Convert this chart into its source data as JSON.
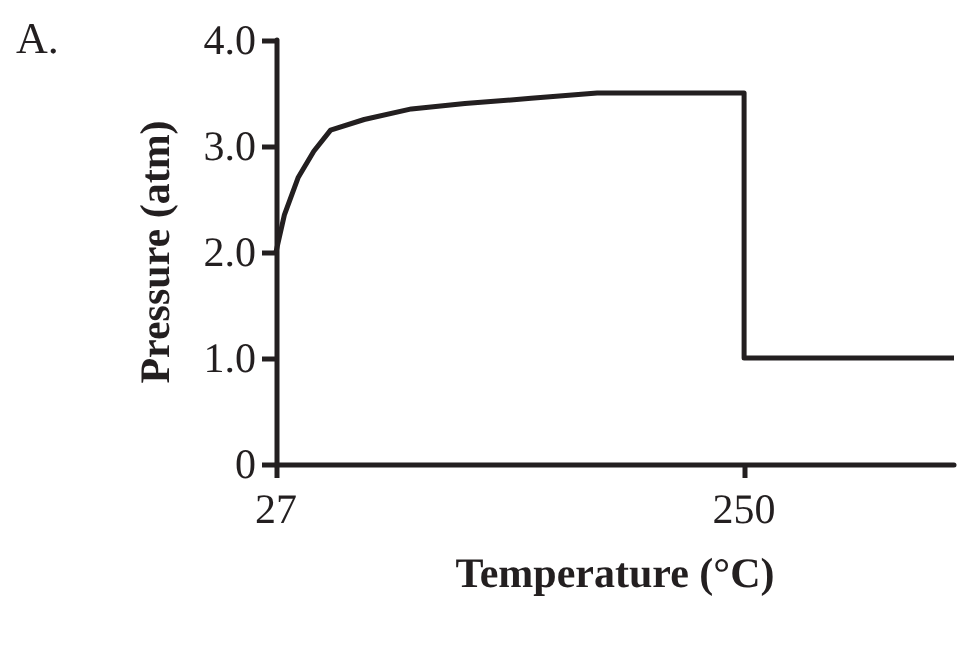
{
  "chart_data": {
    "type": "line",
    "xlabel": "Temperature (°C)",
    "ylabel": "Pressure (atm)",
    "annotations": [
      "A."
    ],
    "x": [
      27,
      31,
      37.5,
      45,
      53,
      69,
      91.5,
      117,
      148.5,
      180,
      212,
      250,
      250,
      350
    ],
    "series": [
      {
        "color": "#231f20",
        "values": [
          2.0,
          2.35,
          2.7,
          2.95,
          3.15,
          3.25,
          3.35,
          3.4,
          3.45,
          3.5,
          3.5,
          3.5,
          1.0,
          1.0
        ]
      }
    ],
    "xlim": [
      27,
      350
    ],
    "xticks": [
      27,
      250
    ],
    "ylim": [
      0,
      4
    ],
    "yticks": [
      0,
      {
        "value": 1,
        "label": "1.0"
      },
      {
        "value": 2,
        "label": "2.0"
      },
      {
        "value": 3,
        "label": "3.0"
      },
      {
        "value": 4,
        "label": "4.0"
      }
    ],
    "grid": false,
    "marker": "none",
    "line_style": "solid"
  }
}
